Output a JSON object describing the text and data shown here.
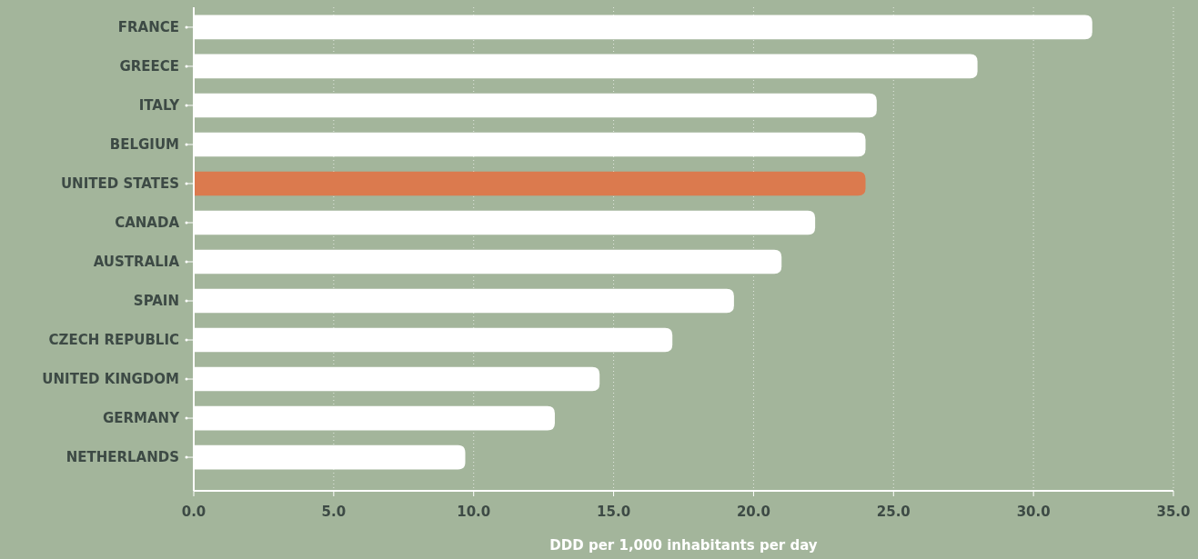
{
  "chart_data": {
    "type": "bar",
    "orientation": "horizontal",
    "xlabel": "DDD per 1,000 inhabitants per day",
    "categories": [
      "FRANCE",
      "GREECE",
      "ITALY",
      "BELGIUM",
      "UNITED STATES",
      "CANADA",
      "AUSTRALIA",
      "SPAIN",
      "CZECH REPUBLIC",
      "UNITED KINGDOM",
      "GERMANY",
      "NETHERLANDS"
    ],
    "values": [
      32.1,
      28.0,
      24.4,
      24.0,
      24.0,
      22.2,
      21.0,
      19.3,
      17.1,
      14.5,
      12.9,
      9.7
    ],
    "colors": [
      "#ffffff",
      "#ffffff",
      "#ffffff",
      "#ffffff",
      "#db7a4e",
      "#ffffff",
      "#ffffff",
      "#ffffff",
      "#ffffff",
      "#ffffff",
      "#ffffff",
      "#ffffff"
    ],
    "xlim": [
      0,
      35
    ],
    "xticks": [
      {
        "value": 0,
        "label": "0.0"
      },
      {
        "value": 5,
        "label": "5.0"
      },
      {
        "value": 10,
        "label": "10.0"
      },
      {
        "value": 15,
        "label": "15.0"
      },
      {
        "value": 20,
        "label": "20.0"
      },
      {
        "value": 25,
        "label": "25.0"
      },
      {
        "value": 30,
        "label": "30.0"
      },
      {
        "value": 35,
        "label": "35.0"
      }
    ],
    "grid": "x"
  }
}
